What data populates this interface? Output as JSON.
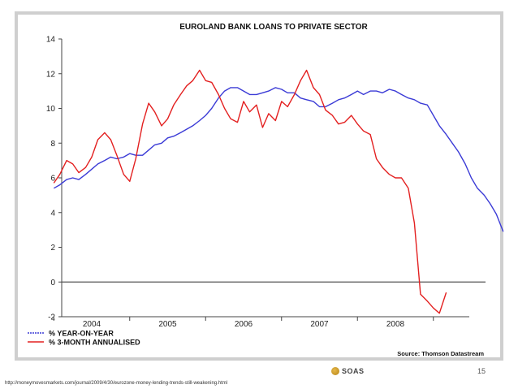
{
  "chart_data": {
    "type": "line",
    "title": "EUROLAND BANK LOANS TO PRIVATE SECTOR",
    "xlabel": "",
    "ylabel": "",
    "ylim": [
      -2,
      14
    ],
    "yticks": [
      -2,
      0,
      2,
      4,
      6,
      8,
      10,
      12,
      14
    ],
    "xlim": [
      2003.5,
      2009.0
    ],
    "xticks": [
      {
        "label": "2004",
        "x": 2004.0
      },
      {
        "label": "2005",
        "x": 2005.0
      },
      {
        "label": "2006",
        "x": 2006.0
      },
      {
        "label": "2007",
        "x": 2007.0
      },
      {
        "label": "2008",
        "x": 2008.0
      }
    ],
    "series": [
      {
        "name": "% YEAR-ON-YEAR",
        "color": "#3b3bd6",
        "points": [
          [
            2003.5,
            5.4
          ],
          [
            2003.58,
            5.6
          ],
          [
            2003.67,
            5.9
          ],
          [
            2003.75,
            6.0
          ],
          [
            2003.83,
            5.9
          ],
          [
            2003.92,
            6.2
          ],
          [
            2004.0,
            6.5
          ],
          [
            2004.08,
            6.8
          ],
          [
            2004.17,
            7.0
          ],
          [
            2004.25,
            7.2
          ],
          [
            2004.33,
            7.1
          ],
          [
            2004.42,
            7.2
          ],
          [
            2004.5,
            7.4
          ],
          [
            2004.58,
            7.3
          ],
          [
            2004.67,
            7.3
          ],
          [
            2004.75,
            7.6
          ],
          [
            2004.83,
            7.9
          ],
          [
            2004.92,
            8.0
          ],
          [
            2005.0,
            8.3
          ],
          [
            2005.08,
            8.4
          ],
          [
            2005.17,
            8.6
          ],
          [
            2005.25,
            8.8
          ],
          [
            2005.33,
            9.0
          ],
          [
            2005.42,
            9.3
          ],
          [
            2005.5,
            9.6
          ],
          [
            2005.58,
            10.0
          ],
          [
            2005.67,
            10.6
          ],
          [
            2005.75,
            11.0
          ],
          [
            2005.83,
            11.2
          ],
          [
            2005.92,
            11.2
          ],
          [
            2006.0,
            11.0
          ],
          [
            2006.08,
            10.8
          ],
          [
            2006.17,
            10.8
          ],
          [
            2006.25,
            10.9
          ],
          [
            2006.33,
            11.0
          ],
          [
            2006.42,
            11.2
          ],
          [
            2006.5,
            11.1
          ],
          [
            2006.58,
            10.9
          ],
          [
            2006.67,
            10.9
          ],
          [
            2006.75,
            10.6
          ],
          [
            2006.83,
            10.5
          ],
          [
            2006.92,
            10.4
          ],
          [
            2007.0,
            10.1
          ],
          [
            2007.08,
            10.1
          ],
          [
            2007.17,
            10.3
          ],
          [
            2007.25,
            10.5
          ],
          [
            2007.33,
            10.6
          ],
          [
            2007.42,
            10.8
          ],
          [
            2007.5,
            11.0
          ],
          [
            2007.58,
            10.8
          ],
          [
            2007.67,
            11.0
          ],
          [
            2007.75,
            11.0
          ],
          [
            2007.83,
            10.9
          ],
          [
            2007.92,
            11.1
          ],
          [
            2008.0,
            11.0
          ],
          [
            2008.08,
            10.8
          ],
          [
            2008.17,
            10.6
          ],
          [
            2008.25,
            10.5
          ],
          [
            2008.33,
            10.3
          ],
          [
            2008.42,
            10.2
          ],
          [
            2008.5,
            9.6
          ],
          [
            2008.58,
            9.0
          ],
          [
            2008.67,
            8.5
          ],
          [
            2008.75,
            8.0
          ],
          [
            2008.83,
            7.5
          ],
          [
            2008.92,
            6.8
          ],
          [
            2009.0,
            6.0
          ],
          [
            2009.08,
            5.4
          ],
          [
            2009.17,
            5.0
          ],
          [
            2009.25,
            4.5
          ],
          [
            2009.33,
            3.9
          ],
          [
            2009.42,
            2.9
          ]
        ]
      },
      {
        "name": "% 3-MONTH ANNUALISED",
        "color": "#e32020",
        "points": [
          [
            2003.5,
            5.7
          ],
          [
            2003.58,
            6.2
          ],
          [
            2003.67,
            7.0
          ],
          [
            2003.75,
            6.8
          ],
          [
            2003.83,
            6.3
          ],
          [
            2003.92,
            6.6
          ],
          [
            2004.0,
            7.2
          ],
          [
            2004.08,
            8.2
          ],
          [
            2004.17,
            8.6
          ],
          [
            2004.25,
            8.2
          ],
          [
            2004.33,
            7.3
          ],
          [
            2004.42,
            6.2
          ],
          [
            2004.5,
            5.8
          ],
          [
            2004.58,
            7.1
          ],
          [
            2004.67,
            9.1
          ],
          [
            2004.75,
            10.3
          ],
          [
            2004.83,
            9.8
          ],
          [
            2004.92,
            9.0
          ],
          [
            2005.0,
            9.4
          ],
          [
            2005.08,
            10.2
          ],
          [
            2005.17,
            10.8
          ],
          [
            2005.25,
            11.3
          ],
          [
            2005.33,
            11.6
          ],
          [
            2005.42,
            12.2
          ],
          [
            2005.5,
            11.6
          ],
          [
            2005.58,
            11.5
          ],
          [
            2005.67,
            10.8
          ],
          [
            2005.75,
            10.0
          ],
          [
            2005.83,
            9.4
          ],
          [
            2005.92,
            9.2
          ],
          [
            2006.0,
            10.4
          ],
          [
            2006.08,
            9.8
          ],
          [
            2006.17,
            10.2
          ],
          [
            2006.25,
            8.9
          ],
          [
            2006.33,
            9.7
          ],
          [
            2006.42,
            9.3
          ],
          [
            2006.5,
            10.4
          ],
          [
            2006.58,
            10.1
          ],
          [
            2006.67,
            10.8
          ],
          [
            2006.75,
            11.6
          ],
          [
            2006.83,
            12.2
          ],
          [
            2006.92,
            11.2
          ],
          [
            2007.0,
            10.8
          ],
          [
            2007.08,
            9.9
          ],
          [
            2007.17,
            9.6
          ],
          [
            2007.25,
            9.1
          ],
          [
            2007.33,
            9.2
          ],
          [
            2007.42,
            9.6
          ],
          [
            2007.5,
            9.1
          ],
          [
            2007.58,
            8.7
          ],
          [
            2007.67,
            8.5
          ],
          [
            2007.75,
            7.1
          ],
          [
            2007.83,
            6.6
          ],
          [
            2007.92,
            6.2
          ],
          [
            2008.0,
            6.0
          ],
          [
            2008.08,
            6.0
          ],
          [
            2008.17,
            5.4
          ],
          [
            2008.25,
            3.4
          ],
          [
            2008.33,
            -0.7
          ],
          [
            2008.42,
            -1.1
          ],
          [
            2008.5,
            -1.5
          ],
          [
            2008.58,
            -1.8
          ],
          [
            2008.67,
            -0.6
          ]
        ]
      }
    ],
    "legend": {
      "placement": "bottom-left",
      "entries": [
        "% YEAR-ON-YEAR",
        "% 3-MONTH ANNUALISED"
      ]
    },
    "annotations": [
      "Source: Thomson Datastream"
    ]
  },
  "footer": {
    "url": "http://moneymovesmarkets.com/journal/2009/4/30/eurozone-money-lending-trends-still-weakening.html",
    "slide_number": "15",
    "logo_text": "SOAS"
  }
}
